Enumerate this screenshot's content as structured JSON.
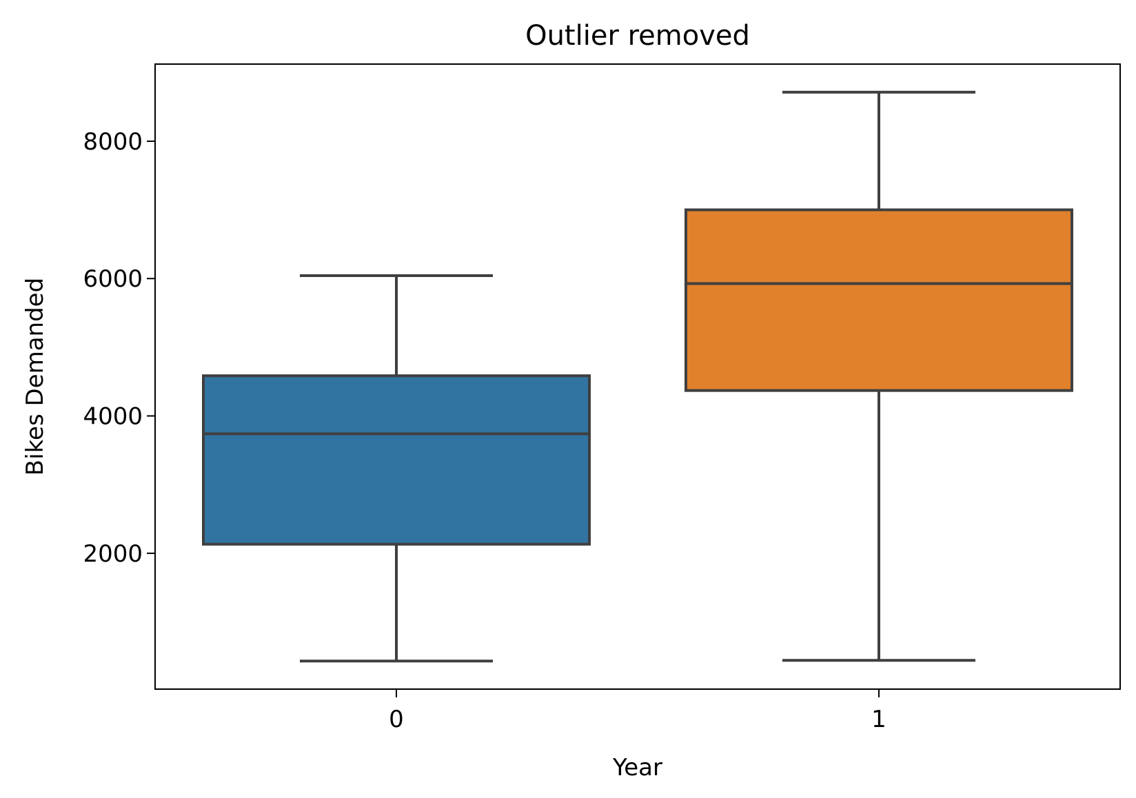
{
  "chart_data": {
    "type": "box",
    "title": "Outlier removed",
    "xlabel": "Year",
    "ylabel": "Bikes Demanded",
    "categories": [
      "0",
      "1"
    ],
    "boxes": [
      {
        "category": "0",
        "whisker_low": 431,
        "q1": 2132,
        "median": 3740,
        "q3": 4585,
        "whisker_high": 6043,
        "color": "#3274a1"
      },
      {
        "category": "1",
        "whisker_low": 441,
        "q1": 4370,
        "median": 5927,
        "q3": 7001,
        "whisker_high": 8714,
        "color": "#e1812c"
      }
    ],
    "yticks": [
      2000,
      4000,
      6000,
      8000
    ],
    "ytick_labels": [
      "2000",
      "4000",
      "6000",
      "8000"
    ],
    "ylim": [
      22,
      9123
    ],
    "grid": false,
    "legend": "none",
    "line_color": "#3f3f3f"
  }
}
